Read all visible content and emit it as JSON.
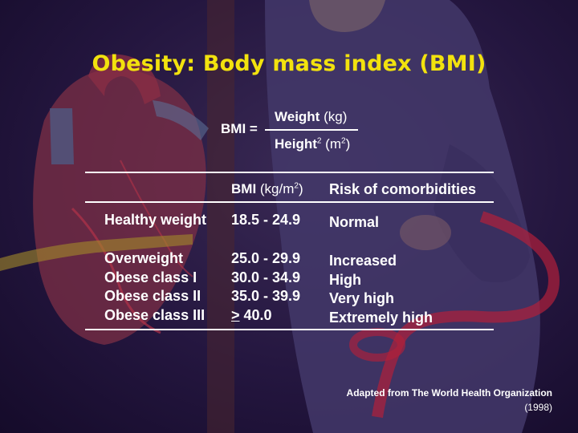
{
  "title": "Obesity: Body mass index (BMI)",
  "formula": {
    "lhs": "BMI =",
    "numerator_bold": "Weight",
    "numerator_unit": " (kg)",
    "denominator_bold": "Height",
    "denominator_sup": "2",
    "denominator_unit_pre": " (m",
    "denominator_unit_sup": "2",
    "denominator_unit_post": ")"
  },
  "table": {
    "header_bmi_bold": "BMI",
    "header_bmi_unit_pre": " (kg/m",
    "header_bmi_unit_sup": "2",
    "header_bmi_unit_post": ")",
    "header_risk": "Risk of comorbidities",
    "rows": [
      {
        "category": "Healthy weight",
        "bmi": "18.5 - 24.9",
        "risk": "Normal"
      },
      {
        "category": "Overweight",
        "bmi": "25.0 - 29.9",
        "risk": "Increased"
      },
      {
        "category": "Obese class I",
        "bmi": "30.0 - 34.9",
        "risk": "High"
      },
      {
        "category": "Obese class II",
        "bmi": "35.0 - 39.9",
        "risk": "Very high"
      },
      {
        "category": "Obese class III",
        "bmi_ge_symbol": ">",
        "bmi_value": " 40.0",
        "risk": "Extremely high"
      }
    ]
  },
  "credit": {
    "line1": "Adapted from The World Health Organization",
    "line2": "(1998)"
  },
  "colors": {
    "title": "#f2e20e",
    "background": "#24163f",
    "text": "#ffffff"
  }
}
